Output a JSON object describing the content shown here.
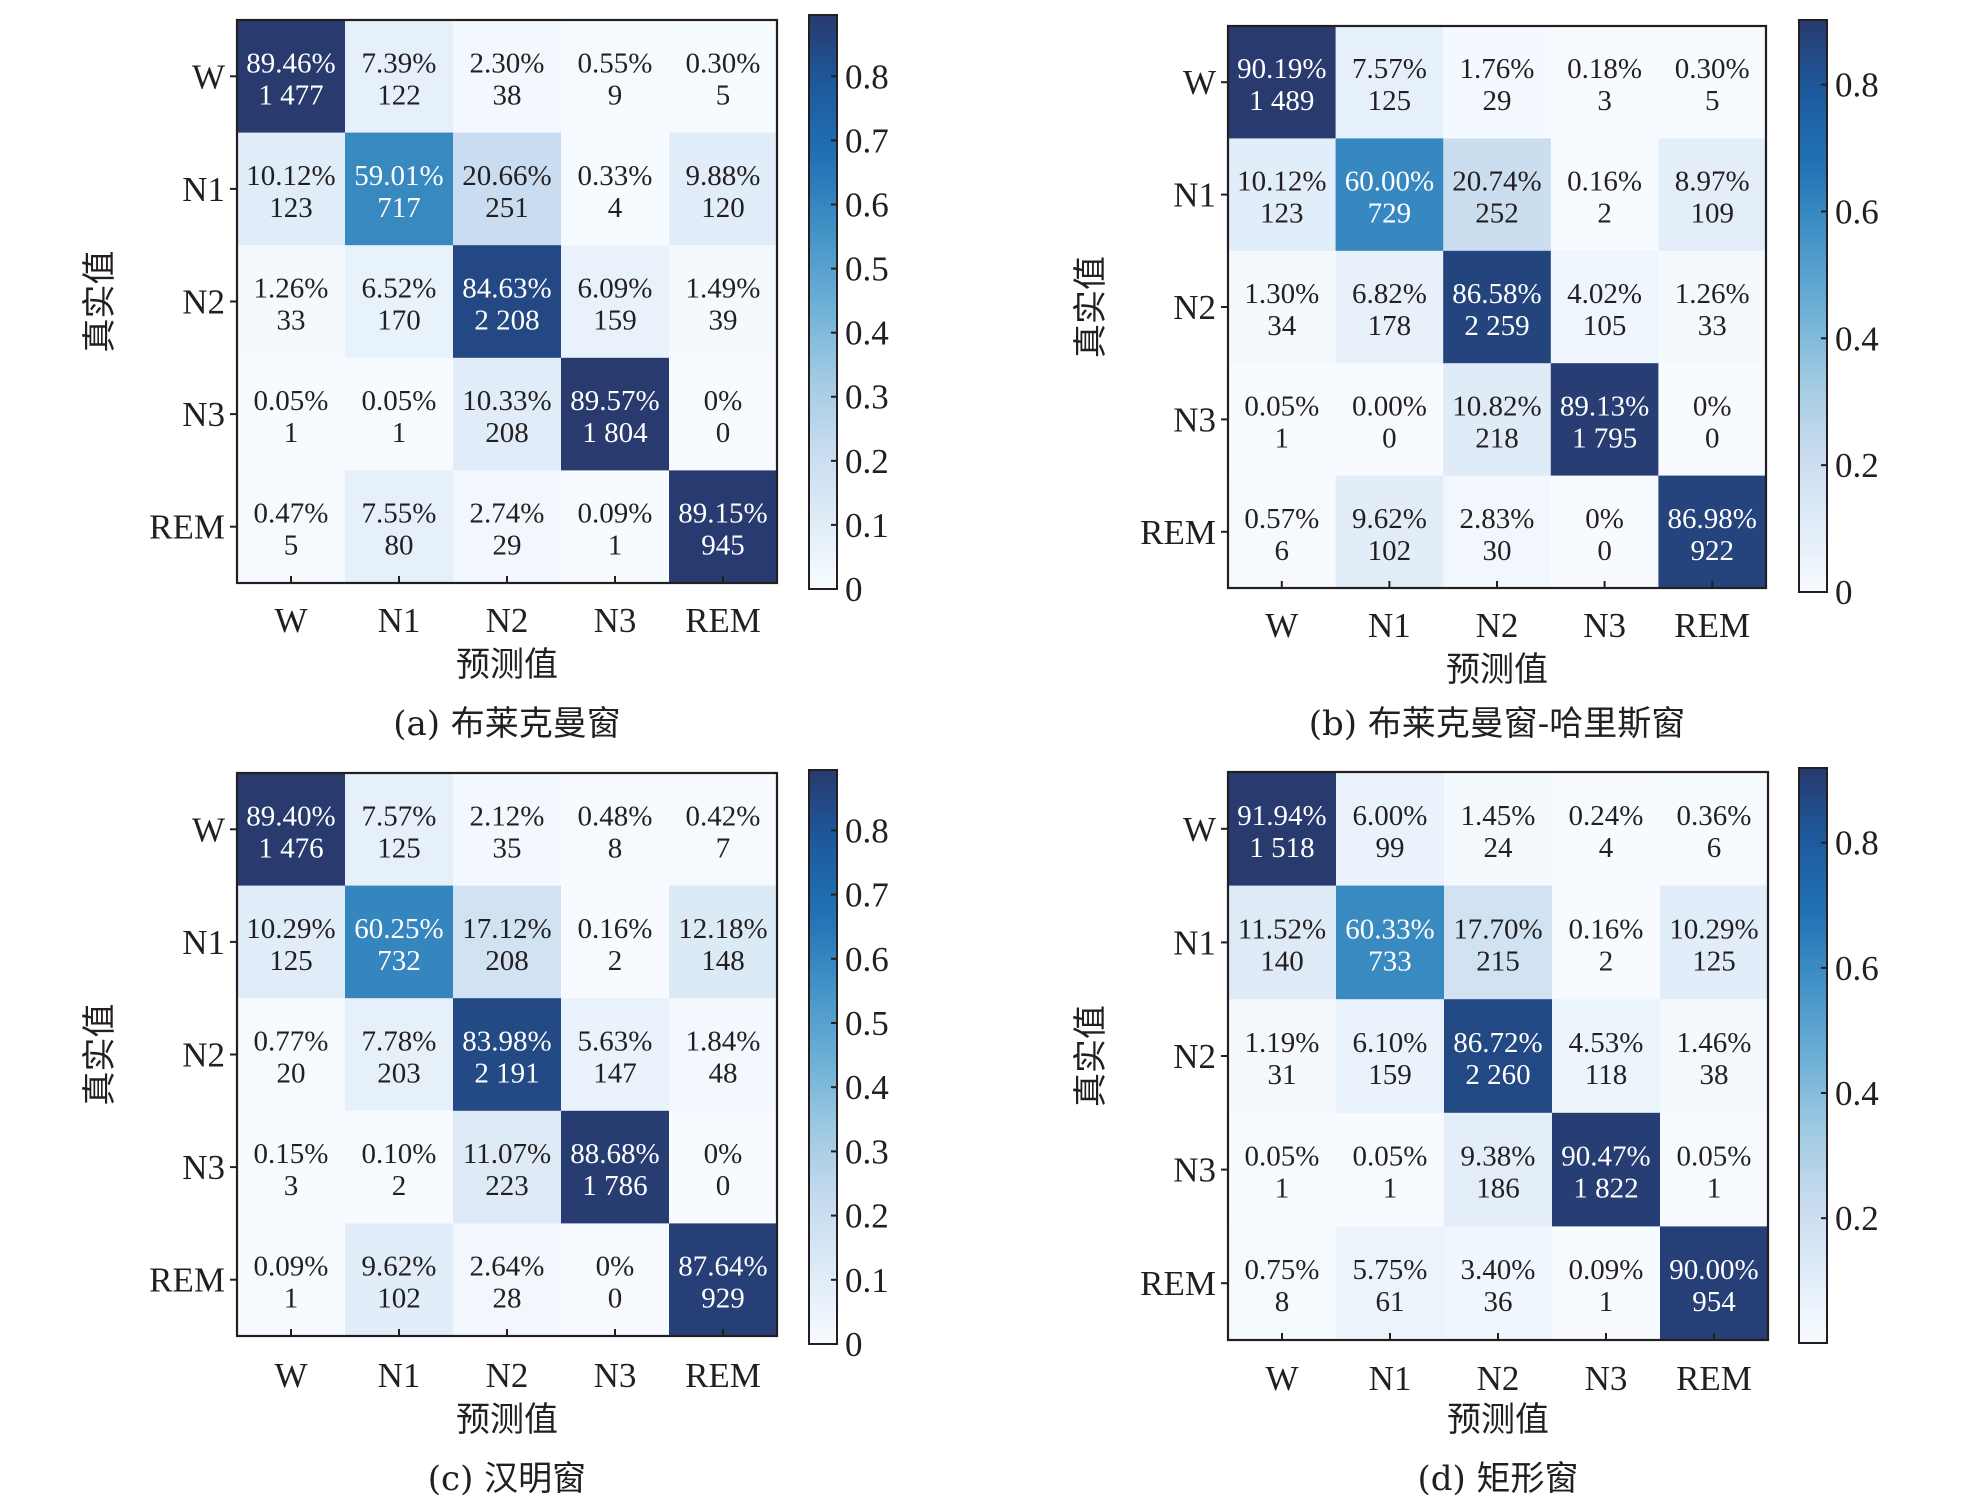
{
  "chart_data": [
    {
      "type": "heatmap",
      "panel": "a",
      "caption": "(a) 布莱克曼窗",
      "xlabel": "预测值",
      "ylabel": "真实值",
      "x_categories": [
        "W",
        "N1",
        "N2",
        "N3",
        "REM"
      ],
      "y_categories": [
        "W",
        "N1",
        "N2",
        "N3",
        "REM"
      ],
      "percent_labels": [
        [
          "89.46%",
          "7.39%",
          "2.30%",
          "0.55%",
          "0.30%"
        ],
        [
          "10.12%",
          "59.01%",
          "20.66%",
          "0.33%",
          "9.88%"
        ],
        [
          "1.26%",
          "6.52%",
          "84.63%",
          "6.09%",
          "1.49%"
        ],
        [
          "0.05%",
          "0.05%",
          "10.33%",
          "89.57%",
          "0%"
        ],
        [
          "0.47%",
          "7.55%",
          "2.74%",
          "0.09%",
          "89.15%"
        ]
      ],
      "values": [
        [
          0.8946,
          0.0739,
          0.023,
          0.0055,
          0.003
        ],
        [
          0.1012,
          0.5901,
          0.2066,
          0.0033,
          0.0988
        ],
        [
          0.0126,
          0.0652,
          0.8463,
          0.0609,
          0.0149
        ],
        [
          0.0005,
          0.0005,
          0.1033,
          0.8957,
          0.0
        ],
        [
          0.0047,
          0.0755,
          0.0274,
          0.0009,
          0.8915
        ]
      ],
      "count_labels": [
        [
          "1 477",
          "122",
          "38",
          "9",
          "5"
        ],
        [
          "123",
          "717",
          "251",
          "4",
          "120"
        ],
        [
          "33",
          "170",
          "2 208",
          "159",
          "39"
        ],
        [
          "1",
          "1",
          "208",
          "1 804",
          "0"
        ],
        [
          "5",
          "80",
          "29",
          "1",
          "945"
        ]
      ],
      "colorbar": {
        "vmin": 0,
        "vmax": 0.8957,
        "ticks": [
          0,
          0.1,
          0.2,
          0.3,
          0.4,
          0.5,
          0.6,
          0.7,
          0.8
        ],
        "tick_labels": [
          "0",
          "0.1",
          "0.2",
          "0.3",
          "0.4",
          "0.5",
          "0.6",
          "0.7",
          "0.8"
        ]
      }
    },
    {
      "type": "heatmap",
      "panel": "b",
      "caption": "(b) 布莱克曼窗-哈里斯窗",
      "xlabel": "预测值",
      "ylabel": "真实值",
      "x_categories": [
        "W",
        "N1",
        "N2",
        "N3",
        "REM"
      ],
      "y_categories": [
        "W",
        "N1",
        "N2",
        "N3",
        "REM"
      ],
      "percent_labels": [
        [
          "90.19%",
          "7.57%",
          "1.76%",
          "0.18%",
          "0.30%"
        ],
        [
          "10.12%",
          "60.00%",
          "20.74%",
          "0.16%",
          "8.97%"
        ],
        [
          "1.30%",
          "6.82%",
          "86.58%",
          "4.02%",
          "1.26%"
        ],
        [
          "0.05%",
          "0.00%",
          "10.82%",
          "89.13%",
          "0%"
        ],
        [
          "0.57%",
          "9.62%",
          "2.83%",
          "0%",
          "86.98%"
        ]
      ],
      "values": [
        [
          0.9019,
          0.0757,
          0.0176,
          0.0018,
          0.003
        ],
        [
          0.1012,
          0.6,
          0.2074,
          0.0016,
          0.0897
        ],
        [
          0.013,
          0.0682,
          0.8658,
          0.0402,
          0.0126
        ],
        [
          0.0005,
          0.0,
          0.1082,
          0.8913,
          0.0
        ],
        [
          0.0057,
          0.0962,
          0.0283,
          0.0,
          0.8698
        ]
      ],
      "count_labels": [
        [
          "1 489",
          "125",
          "29",
          "3",
          "5"
        ],
        [
          "123",
          "729",
          "252",
          "2",
          "109"
        ],
        [
          "34",
          "178",
          "2 259",
          "105",
          "33"
        ],
        [
          "1",
          "0",
          "218",
          "1 795",
          "0"
        ],
        [
          "6",
          "102",
          "30",
          "0",
          "922"
        ]
      ],
      "colorbar": {
        "vmin": 0,
        "vmax": 0.9019,
        "ticks": [
          0,
          0.2,
          0.4,
          0.6,
          0.8
        ],
        "tick_labels": [
          "0",
          "0.2",
          "0.4",
          "0.6",
          "0.8"
        ]
      }
    },
    {
      "type": "heatmap",
      "panel": "c",
      "caption": "(c) 汉明窗",
      "xlabel": "预测值",
      "ylabel": "真实值",
      "x_categories": [
        "W",
        "N1",
        "N2",
        "N3",
        "REM"
      ],
      "y_categories": [
        "W",
        "N1",
        "N2",
        "N3",
        "REM"
      ],
      "percent_labels": [
        [
          "89.40%",
          "7.57%",
          "2.12%",
          "0.48%",
          "0.42%"
        ],
        [
          "10.29%",
          "60.25%",
          "17.12%",
          "0.16%",
          "12.18%"
        ],
        [
          "0.77%",
          "7.78%",
          "83.98%",
          "5.63%",
          "1.84%"
        ],
        [
          "0.15%",
          "0.10%",
          "11.07%",
          "88.68%",
          "0%"
        ],
        [
          "0.09%",
          "9.62%",
          "2.64%",
          "0%",
          "87.64%"
        ]
      ],
      "values": [
        [
          0.894,
          0.0757,
          0.0212,
          0.0048,
          0.0042
        ],
        [
          0.1029,
          0.6025,
          0.1712,
          0.0016,
          0.1218
        ],
        [
          0.0077,
          0.0778,
          0.8398,
          0.0563,
          0.0184
        ],
        [
          0.0015,
          0.001,
          0.1107,
          0.8868,
          0.0
        ],
        [
          0.0009,
          0.0962,
          0.0264,
          0.0,
          0.8764
        ]
      ],
      "count_labels": [
        [
          "1 476",
          "125",
          "35",
          "8",
          "7"
        ],
        [
          "125",
          "732",
          "208",
          "2",
          "148"
        ],
        [
          "20",
          "203",
          "2 191",
          "147",
          "48"
        ],
        [
          "3",
          "2",
          "223",
          "1 786",
          "0"
        ],
        [
          "1",
          "102",
          "28",
          "0",
          "929"
        ]
      ],
      "colorbar": {
        "vmin": 0,
        "vmax": 0.894,
        "ticks": [
          0,
          0.1,
          0.2,
          0.3,
          0.4,
          0.5,
          0.6,
          0.7,
          0.8
        ],
        "tick_labels": [
          "0",
          "0.1",
          "0.2",
          "0.3",
          "0.4",
          "0.5",
          "0.6",
          "0.7",
          "0.8"
        ]
      }
    },
    {
      "type": "heatmap",
      "panel": "d",
      "caption": "(d) 矩形窗",
      "xlabel": "预测值",
      "ylabel": "真实值",
      "x_categories": [
        "W",
        "N1",
        "N2",
        "N3",
        "REM"
      ],
      "y_categories": [
        "W",
        "N1",
        "N2",
        "N3",
        "REM"
      ],
      "percent_labels": [
        [
          "91.94%",
          "6.00%",
          "1.45%",
          "0.24%",
          "0.36%"
        ],
        [
          "11.52%",
          "60.33%",
          "17.70%",
          "0.16%",
          "10.29%"
        ],
        [
          "1.19%",
          "6.10%",
          "86.72%",
          "4.53%",
          "1.46%"
        ],
        [
          "0.05%",
          "0.05%",
          "9.38%",
          "90.47%",
          "0.05%"
        ],
        [
          "0.75%",
          "5.75%",
          "3.40%",
          "0.09%",
          "90.00%"
        ]
      ],
      "values": [
        [
          0.9194,
          0.06,
          0.0145,
          0.0024,
          0.0036
        ],
        [
          0.1152,
          0.6033,
          0.177,
          0.0016,
          0.1029
        ],
        [
          0.0119,
          0.061,
          0.8672,
          0.0453,
          0.0146
        ],
        [
          0.0005,
          0.0005,
          0.0938,
          0.9047,
          0.0005
        ],
        [
          0.0075,
          0.0575,
          0.034,
          0.0009,
          0.9
        ]
      ],
      "count_labels": [
        [
          "1 518",
          "99",
          "24",
          "4",
          "6"
        ],
        [
          "140",
          "733",
          "215",
          "2",
          "125"
        ],
        [
          "31",
          "159",
          "2 260",
          "118",
          "38"
        ],
        [
          "1",
          "1",
          "186",
          "1 822",
          "1"
        ],
        [
          "8",
          "61",
          "36",
          "1",
          "954"
        ]
      ],
      "colorbar": {
        "vmin": 0.0005,
        "vmax": 0.9194,
        "ticks": [
          0.2,
          0.4,
          0.6,
          0.8
        ],
        "tick_labels": [
          "0.2",
          "0.4",
          "0.6",
          "0.8"
        ]
      }
    }
  ],
  "colormap": [
    "#f7fbff",
    "#deebf7",
    "#c6dbef",
    "#9ecae1",
    "#6baed6",
    "#4292c6",
    "#2171b5",
    "#1d5a9e",
    "#283a6e"
  ]
}
